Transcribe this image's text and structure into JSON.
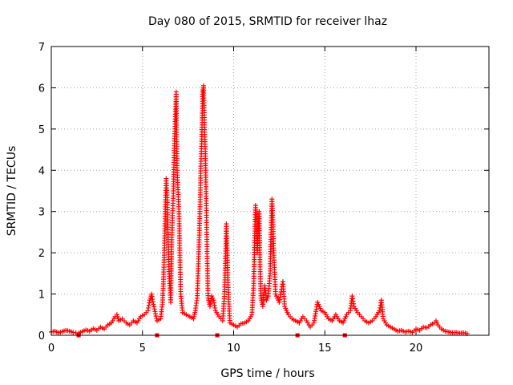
{
  "chart_data": {
    "type": "scatter",
    "title": "Day 080 of 2015, SRMTID for receiver lhaz",
    "xlabel": "GPS time / hours",
    "ylabel": "SRMTID / TECUs",
    "xlim": [
      0,
      24
    ],
    "ylim": [
      0,
      7
    ],
    "xticks": [
      0,
      5,
      10,
      15,
      20
    ],
    "yticks": [
      0,
      1,
      2,
      3,
      4,
      5,
      6,
      7
    ],
    "grid": true,
    "marker": "plus",
    "color": "#ff0000",
    "gap_marks": [
      1.5,
      5.8,
      9.1,
      13.5,
      16.1
    ],
    "series": [
      {
        "name": "SRMTID",
        "points": [
          [
            0.0,
            0.08
          ],
          [
            0.2,
            0.1
          ],
          [
            0.4,
            0.06
          ],
          [
            0.6,
            0.09
          ],
          [
            0.8,
            0.12
          ],
          [
            1.0,
            0.1
          ],
          [
            1.2,
            0.07
          ],
          [
            1.5,
            0.05
          ],
          [
            1.7,
            0.09
          ],
          [
            1.9,
            0.13
          ],
          [
            2.1,
            0.1
          ],
          [
            2.3,
            0.16
          ],
          [
            2.5,
            0.12
          ],
          [
            2.7,
            0.2
          ],
          [
            2.9,
            0.15
          ],
          [
            3.1,
            0.25
          ],
          [
            3.3,
            0.3
          ],
          [
            3.5,
            0.45
          ],
          [
            3.6,
            0.5
          ],
          [
            3.7,
            0.35
          ],
          [
            3.9,
            0.4
          ],
          [
            4.1,
            0.3
          ],
          [
            4.3,
            0.25
          ],
          [
            4.5,
            0.35
          ],
          [
            4.7,
            0.3
          ],
          [
            4.9,
            0.45
          ],
          [
            5.1,
            0.5
          ],
          [
            5.3,
            0.6
          ],
          [
            5.4,
            0.85
          ],
          [
            5.5,
            1.0
          ],
          [
            5.6,
            0.75
          ],
          [
            5.8,
            0.35
          ],
          [
            6.0,
            0.4
          ],
          [
            6.1,
            0.8
          ],
          [
            6.15,
            1.3
          ],
          [
            6.2,
            2.0
          ],
          [
            6.25,
            3.0
          ],
          [
            6.3,
            3.8
          ],
          [
            6.35,
            3.4
          ],
          [
            6.4,
            2.5
          ],
          [
            6.45,
            1.6
          ],
          [
            6.5,
            1.2
          ],
          [
            6.55,
            0.8
          ],
          [
            6.6,
            2.2
          ],
          [
            6.65,
            2.9
          ],
          [
            6.7,
            3.5
          ],
          [
            6.75,
            4.65
          ],
          [
            6.8,
            5.3
          ],
          [
            6.85,
            5.9
          ],
          [
            6.9,
            4.0
          ],
          [
            7.0,
            3.0
          ],
          [
            7.05,
            2.0
          ],
          [
            7.1,
            1.0
          ],
          [
            7.2,
            0.55
          ],
          [
            7.4,
            0.5
          ],
          [
            7.6,
            0.45
          ],
          [
            7.8,
            0.4
          ],
          [
            7.9,
            0.6
          ],
          [
            8.0,
            0.9
          ],
          [
            8.05,
            1.5
          ],
          [
            8.1,
            2.2
          ],
          [
            8.15,
            3.0
          ],
          [
            8.2,
            4.1
          ],
          [
            8.25,
            4.7
          ],
          [
            8.3,
            5.9
          ],
          [
            8.35,
            6.05
          ],
          [
            8.4,
            5.1
          ],
          [
            8.45,
            4.4
          ],
          [
            8.5,
            3.2
          ],
          [
            8.55,
            1.8
          ],
          [
            8.6,
            0.9
          ],
          [
            8.7,
            0.7
          ],
          [
            8.8,
            0.95
          ],
          [
            8.9,
            0.85
          ],
          [
            9.0,
            0.6
          ],
          [
            9.2,
            0.45
          ],
          [
            9.4,
            0.35
          ],
          [
            9.5,
            1.0
          ],
          [
            9.55,
            1.8
          ],
          [
            9.6,
            2.7
          ],
          [
            9.65,
            2.0
          ],
          [
            9.7,
            1.1
          ],
          [
            9.8,
            0.3
          ],
          [
            10.0,
            0.25
          ],
          [
            10.2,
            0.2
          ],
          [
            10.4,
            0.28
          ],
          [
            10.6,
            0.3
          ],
          [
            10.8,
            0.35
          ],
          [
            11.0,
            0.5
          ],
          [
            11.1,
            1.2
          ],
          [
            11.15,
            2.3
          ],
          [
            11.2,
            3.15
          ],
          [
            11.25,
            2.8
          ],
          [
            11.3,
            2.0
          ],
          [
            11.35,
            2.6
          ],
          [
            11.4,
            3.0
          ],
          [
            11.45,
            1.6
          ],
          [
            11.5,
            0.9
          ],
          [
            11.6,
            0.7
          ],
          [
            11.7,
            1.2
          ],
          [
            11.8,
            0.85
          ],
          [
            11.9,
            0.95
          ],
          [
            12.0,
            1.5
          ],
          [
            12.05,
            2.5
          ],
          [
            12.1,
            3.3
          ],
          [
            12.15,
            2.8
          ],
          [
            12.2,
            2.0
          ],
          [
            12.3,
            1.0
          ],
          [
            12.4,
            0.9
          ],
          [
            12.5,
            0.8
          ],
          [
            12.6,
            1.05
          ],
          [
            12.7,
            1.3
          ],
          [
            12.8,
            0.7
          ],
          [
            13.0,
            0.5
          ],
          [
            13.2,
            0.4
          ],
          [
            13.4,
            0.35
          ],
          [
            13.6,
            0.3
          ],
          [
            13.8,
            0.45
          ],
          [
            14.0,
            0.35
          ],
          [
            14.2,
            0.2
          ],
          [
            14.4,
            0.3
          ],
          [
            14.6,
            0.8
          ],
          [
            14.8,
            0.6
          ],
          [
            15.0,
            0.55
          ],
          [
            15.2,
            0.4
          ],
          [
            15.4,
            0.35
          ],
          [
            15.6,
            0.5
          ],
          [
            15.8,
            0.35
          ],
          [
            16.0,
            0.3
          ],
          [
            16.2,
            0.5
          ],
          [
            16.4,
            0.6
          ],
          [
            16.5,
            0.95
          ],
          [
            16.6,
            0.7
          ],
          [
            16.8,
            0.55
          ],
          [
            17.0,
            0.45
          ],
          [
            17.2,
            0.35
          ],
          [
            17.4,
            0.3
          ],
          [
            17.6,
            0.35
          ],
          [
            17.8,
            0.45
          ],
          [
            18.0,
            0.6
          ],
          [
            18.1,
            0.85
          ],
          [
            18.2,
            0.4
          ],
          [
            18.4,
            0.25
          ],
          [
            18.6,
            0.2
          ],
          [
            18.8,
            0.15
          ],
          [
            19.0,
            0.1
          ],
          [
            19.2,
            0.12
          ],
          [
            19.4,
            0.08
          ],
          [
            19.6,
            0.1
          ],
          [
            19.8,
            0.07
          ],
          [
            20.0,
            0.15
          ],
          [
            20.2,
            0.12
          ],
          [
            20.4,
            0.2
          ],
          [
            20.6,
            0.18
          ],
          [
            20.8,
            0.25
          ],
          [
            21.0,
            0.3
          ],
          [
            21.1,
            0.35
          ],
          [
            21.2,
            0.25
          ],
          [
            21.4,
            0.15
          ],
          [
            21.6,
            0.1
          ],
          [
            21.8,
            0.08
          ],
          [
            22.0,
            0.06
          ],
          [
            22.2,
            0.07
          ],
          [
            22.4,
            0.05
          ],
          [
            22.6,
            0.06
          ],
          [
            22.8,
            0.04
          ]
        ]
      }
    ]
  }
}
